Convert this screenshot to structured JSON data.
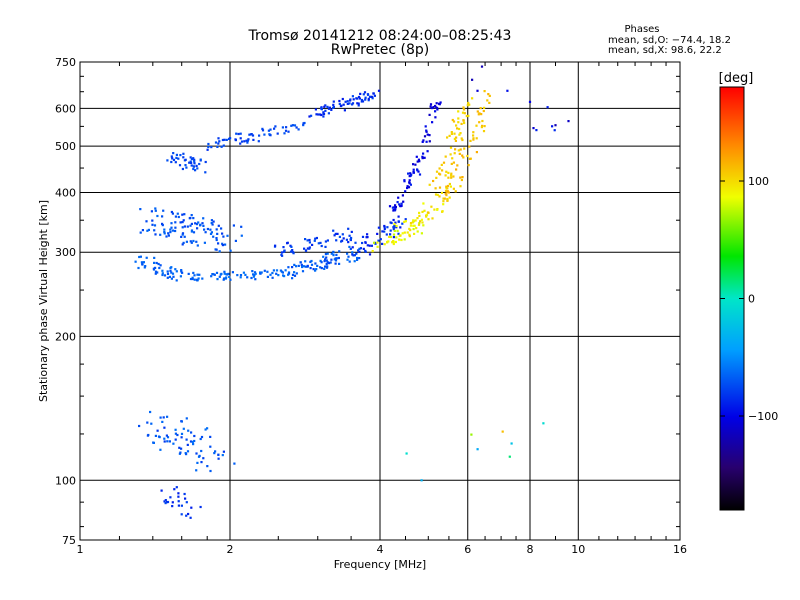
{
  "chart_data": {
    "type": "scatter",
    "title": "Tromsø 20141212 08:24:00–08:25:43",
    "subtitle": "RwPretec (8p)",
    "xlabel": "Frequency [MHz]",
    "ylabel": "Stationary phase Virtual Height [km]",
    "x_scale": "log",
    "y_scale": "log",
    "xlim": [
      1,
      16
    ],
    "ylim": [
      75,
      750
    ],
    "x_ticks": [
      1,
      2,
      4,
      6,
      8,
      10,
      16
    ],
    "x_tick_labels": [
      "1",
      "2",
      "4",
      "6",
      "8",
      "10",
      "16"
    ],
    "y_ticks": [
      75,
      100,
      200,
      300,
      400,
      500,
      600,
      750
    ],
    "y_tick_labels": [
      "75",
      "100",
      "200",
      "300",
      "400",
      "500",
      "600",
      "750"
    ],
    "grid": true,
    "stats": {
      "heading": "Phases",
      "line_o": "mean, sd,O: −74.4, 18.2",
      "line_x": "mean, sd,X: 98.6, 22.2"
    },
    "colorbar": {
      "label": "[deg]",
      "range": [
        -180,
        180
      ],
      "ticks": [
        100,
        0,
        -100
      ],
      "tick_labels": [
        "100",
        "0",
        "−100"
      ]
    },
    "traces": [
      {
        "from": [
          1.5,
          470
        ],
        "to": [
          1.8,
          455
        ],
        "n": 40,
        "spread": 0.035,
        "phase": [
          -82,
          -70
        ]
      },
      {
        "from": [
          1.8,
          500
        ],
        "to": [
          2.3,
          530
        ],
        "n": 35,
        "spread": 0.03,
        "phase": [
          -85,
          -72
        ]
      },
      {
        "from": [
          2.3,
          530
        ],
        "to": [
          2.8,
          555
        ],
        "n": 25,
        "spread": 0.02,
        "phase": [
          -80,
          -68
        ]
      },
      {
        "from": [
          2.9,
          580
        ],
        "to": [
          3.9,
          640
        ],
        "n": 70,
        "spread": 0.025,
        "phase": [
          -95,
          -75
        ]
      },
      {
        "from": [
          1.4,
          350
        ],
        "to": [
          2.0,
          320
        ],
        "n": 110,
        "spread": 0.07,
        "phase": [
          -80,
          -62
        ]
      },
      {
        "from": [
          1.3,
          290
        ],
        "to": [
          1.6,
          268
        ],
        "n": 45,
        "spread": 0.03,
        "phase": [
          -72,
          -60
        ]
      },
      {
        "from": [
          1.6,
          266
        ],
        "to": [
          2.6,
          270
        ],
        "n": 70,
        "spread": 0.02,
        "phase": [
          -70,
          -58
        ]
      },
      {
        "from": [
          2.6,
          272
        ],
        "to": [
          3.6,
          300
        ],
        "n": 80,
        "spread": 0.035,
        "phase": [
          -78,
          -60
        ]
      },
      {
        "from": [
          2.4,
          300
        ],
        "to": [
          3.6,
          330
        ],
        "n": 55,
        "spread": 0.03,
        "phase": [
          -90,
          -72
        ]
      },
      {
        "from": [
          3.6,
          300
        ],
        "to": [
          4.4,
          350
        ],
        "n": 55,
        "spread": 0.035,
        "phase": [
          -95,
          -75
        ]
      },
      {
        "from": [
          4.2,
          360
        ],
        "to": [
          4.8,
          460
        ],
        "n": 45,
        "spread": 0.025,
        "phase": [
          -110,
          -88
        ]
      },
      {
        "from": [
          4.8,
          460
        ],
        "to": [
          5.2,
          630
        ],
        "n": 35,
        "spread": 0.025,
        "phase": [
          -115,
          -95
        ]
      },
      {
        "from": [
          3.9,
          305
        ],
        "to": [
          4.8,
          340
        ],
        "n": 35,
        "spread": 0.03,
        "phase": [
          75,
          95
        ]
      },
      {
        "from": [
          4.4,
          330
        ],
        "to": [
          5.6,
          400
        ],
        "n": 50,
        "spread": 0.04,
        "phase": [
          85,
          108
        ]
      },
      {
        "from": [
          5.2,
          400
        ],
        "to": [
          5.7,
          520
        ],
        "n": 40,
        "spread": 0.04,
        "phase": [
          98,
          115
        ]
      },
      {
        "from": [
          5.6,
          520
        ],
        "to": [
          6.0,
          630
        ],
        "n": 30,
        "spread": 0.03,
        "phase": [
          95,
          112
        ]
      },
      {
        "from": [
          5.4,
          380
        ],
        "to": [
          6.4,
          560
        ],
        "n": 35,
        "spread": 0.03,
        "phase": [
          102,
          118
        ]
      },
      {
        "from": [
          6.3,
          560
        ],
        "to": [
          6.6,
          640
        ],
        "n": 15,
        "spread": 0.02,
        "phase": [
          100,
          115
        ]
      },
      {
        "from": [
          1.4,
          130
        ],
        "to": [
          1.9,
          112
        ],
        "n": 75,
        "spread": 0.09,
        "phase": [
          -82,
          -60
        ]
      },
      {
        "from": [
          1.5,
          95
        ],
        "to": [
          1.7,
          85
        ],
        "n": 25,
        "spread": 0.05,
        "phase": [
          -92,
          -75
        ]
      },
      {
        "from": [
          6.4,
          700
        ],
        "to": [
          9.5,
          520
        ],
        "n": 12,
        "spread": 0.06,
        "phase": [
          -120,
          -85
        ]
      },
      {
        "from": [
          4.7,
          105
        ],
        "to": [
          8.5,
          130
        ],
        "n": 8,
        "spread": 0.08,
        "phase": [
          -60,
          120
        ]
      }
    ]
  }
}
